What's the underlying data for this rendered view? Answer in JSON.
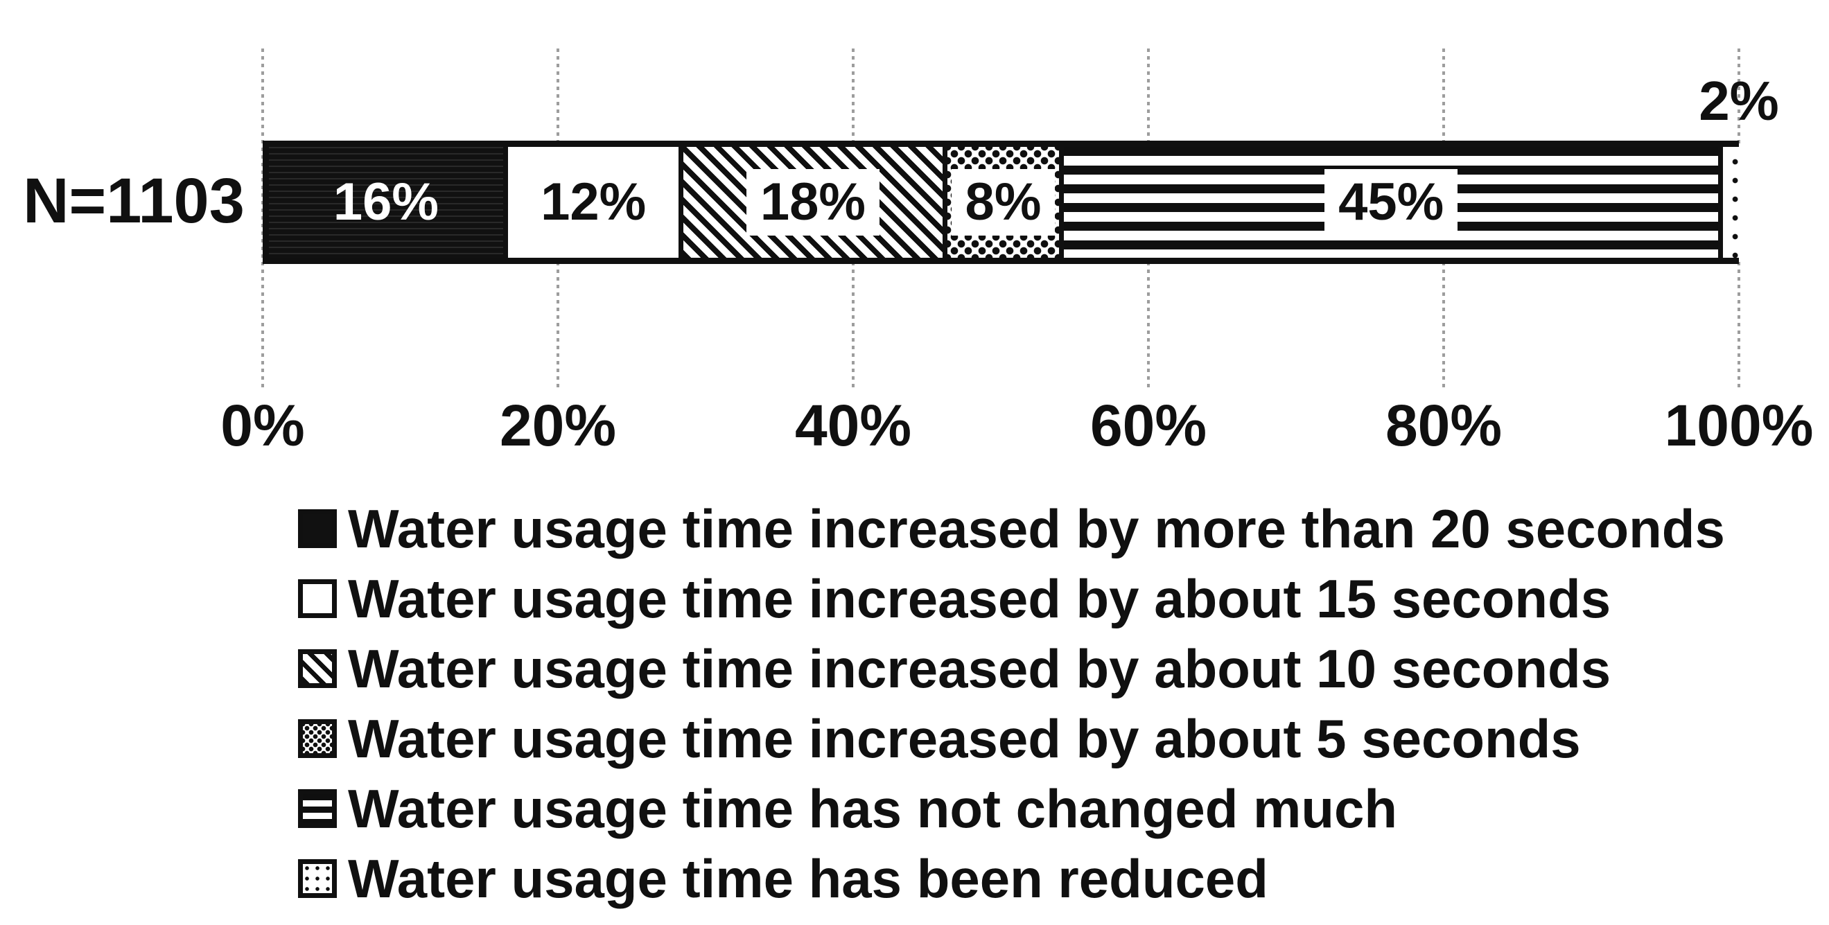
{
  "figure": {
    "row_label": "N=1103"
  },
  "colors": {
    "ink": "#101010",
    "background": "#ffffff",
    "gridline": "#9d9d9d"
  },
  "chart_data": {
    "type": "bar",
    "subtype": "horizontal-stacked-100pct",
    "row_label": "N=1103",
    "series": [
      {
        "name": "Water usage time increased by more than 20 seconds",
        "value": 16,
        "value_label": "16%",
        "pattern": "solid-black",
        "label_position": "inside-white-text"
      },
      {
        "name": "Water usage time increased by about 15 seconds",
        "value": 12,
        "value_label": "12%",
        "pattern": "plain-white",
        "label_position": "inside"
      },
      {
        "name": "Water usage time increased by about 10 seconds",
        "value": 18,
        "value_label": "18%",
        "pattern": "diagonal-hatch",
        "label_position": "inside-boxed"
      },
      {
        "name": "Water usage time increased by about 5 seconds",
        "value": 8,
        "value_label": "8%",
        "pattern": "dense-dots",
        "label_position": "inside-boxed"
      },
      {
        "name": "Water usage time has not changed much",
        "value": 45,
        "value_label": "45%",
        "pattern": "horizontal-stripes",
        "label_position": "inside-boxed"
      },
      {
        "name": "Water usage time has been reduced",
        "value": 2,
        "value_label": "2%",
        "pattern": "sparse-dots",
        "label_position": "above-bar"
      }
    ],
    "x_ticks": [
      "0%",
      "20%",
      "40%",
      "60%",
      "80%",
      "100%"
    ],
    "x_tick_values": [
      0,
      20,
      40,
      60,
      80,
      100
    ],
    "xlim": [
      0,
      100
    ],
    "grid": "dotted-vertical",
    "legend_position": "bottom-left"
  }
}
